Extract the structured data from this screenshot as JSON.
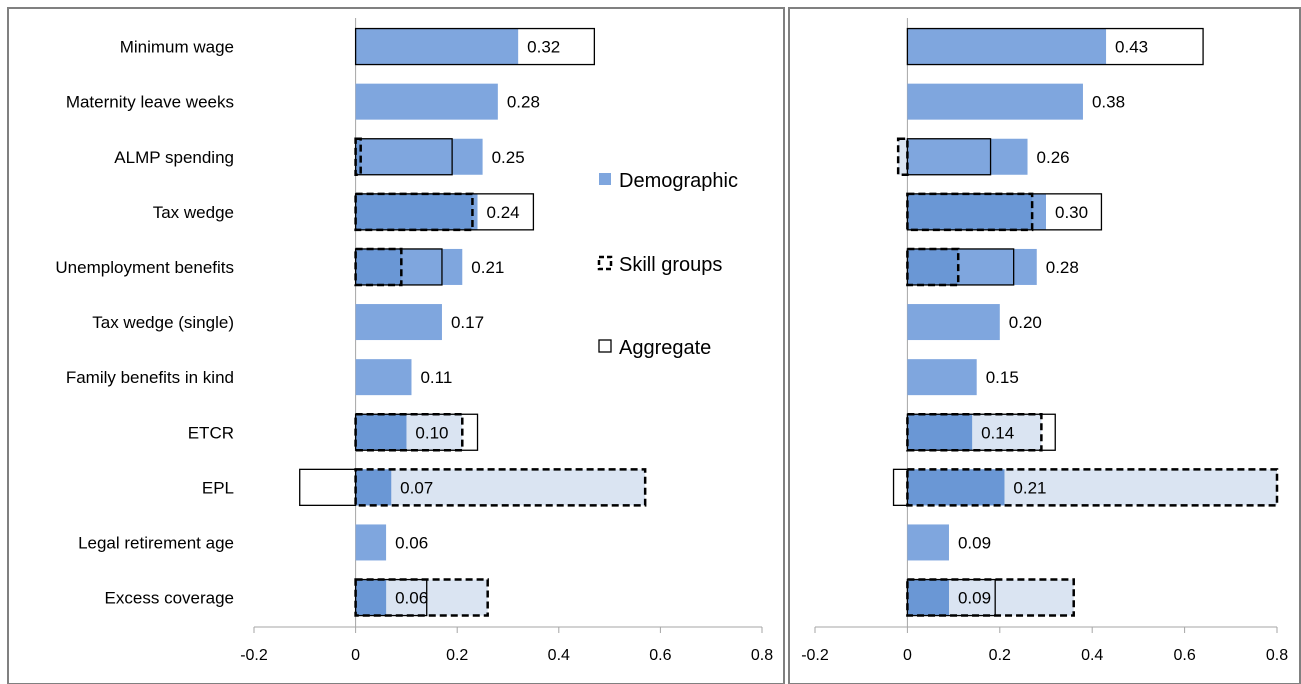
{
  "chart_data": [
    {
      "type": "bar",
      "orientation": "horizontal",
      "categories": [
        "Minimum wage",
        "Maternity leave weeks",
        "ALMP spending",
        "Tax wedge",
        "Unemployment benefits",
        "Tax wedge (single)",
        "Family benefits in kind",
        "ETCR",
        "EPL",
        "Legal retirement age",
        "Excess coverage"
      ],
      "xlim": [
        -0.2,
        0.8
      ],
      "x_ticks": [
        "-0.2",
        "0",
        "0.2",
        "0.4",
        "0.6",
        "0.8"
      ],
      "grid": false,
      "legend_position": "right-inside",
      "series": [
        {
          "name": "Demographic",
          "style": "solid-fill",
          "values": [
            0.32,
            0.28,
            0.25,
            0.24,
            0.21,
            0.17,
            0.11,
            0.1,
            0.07,
            0.06,
            0.06
          ],
          "value_labels": [
            "0.32",
            "0.28",
            "0.25",
            "0.24",
            "0.21",
            "0.17",
            "0.11",
            "0.10",
            "0.07",
            "0.06",
            "0.06"
          ]
        },
        {
          "name": "Skill groups",
          "style": "dashed-outline",
          "values": [
            null,
            null,
            0.01,
            0.23,
            0.09,
            null,
            null,
            0.21,
            0.57,
            null,
            0.26
          ]
        },
        {
          "name": "Aggregate",
          "style": "solid-outline",
          "values": [
            0.47,
            null,
            0.19,
            0.35,
            0.17,
            null,
            null,
            0.24,
            -0.11,
            null,
            0.14
          ]
        }
      ]
    },
    {
      "type": "bar",
      "orientation": "horizontal",
      "categories": [
        "Minimum wage",
        "Maternity leave weeks",
        "ALMP spending",
        "Tax wedge",
        "Unemployment benefits",
        "Tax wedge (single)",
        "Family benefits in kind",
        "ETCR",
        "EPL",
        "Legal retirement age",
        "Excess coverage"
      ],
      "xlim": [
        -0.2,
        0.8
      ],
      "x_ticks": [
        "-0.2",
        "0",
        "0.2",
        "0.4",
        "0.6",
        "0.8"
      ],
      "grid": false,
      "series": [
        {
          "name": "Demographic",
          "style": "solid-fill",
          "values": [
            0.43,
            0.38,
            0.26,
            0.3,
            0.28,
            0.2,
            0.15,
            0.14,
            0.21,
            0.09,
            0.09
          ],
          "value_labels": [
            "0.43",
            "0.38",
            "0.26",
            "0.30",
            "0.28",
            "0.20",
            "0.15",
            "0.14",
            "0.21",
            "0.09",
            "0.09"
          ]
        },
        {
          "name": "Skill groups",
          "style": "dashed-outline",
          "values": [
            null,
            null,
            -0.02,
            0.27,
            0.11,
            null,
            null,
            0.29,
            0.8,
            null,
            0.36
          ]
        },
        {
          "name": "Aggregate",
          "style": "solid-outline",
          "values": [
            0.64,
            null,
            0.18,
            0.42,
            0.23,
            null,
            null,
            0.32,
            -0.03,
            null,
            0.19
          ]
        }
      ]
    }
  ],
  "legend": [
    {
      "label": "Demographic",
      "style": "solid-fill"
    },
    {
      "label": "Skill groups",
      "style": "dashed-outline"
    },
    {
      "label": "Aggregate",
      "style": "solid-outline"
    }
  ],
  "colors": {
    "demographic_fill": "#7FA6DE",
    "dark_overlap": "#6A97D5",
    "skill_fill": "#DAE4F2",
    "outline": "#000000",
    "frame": "#808080",
    "axis": "#A6A6A6"
  }
}
